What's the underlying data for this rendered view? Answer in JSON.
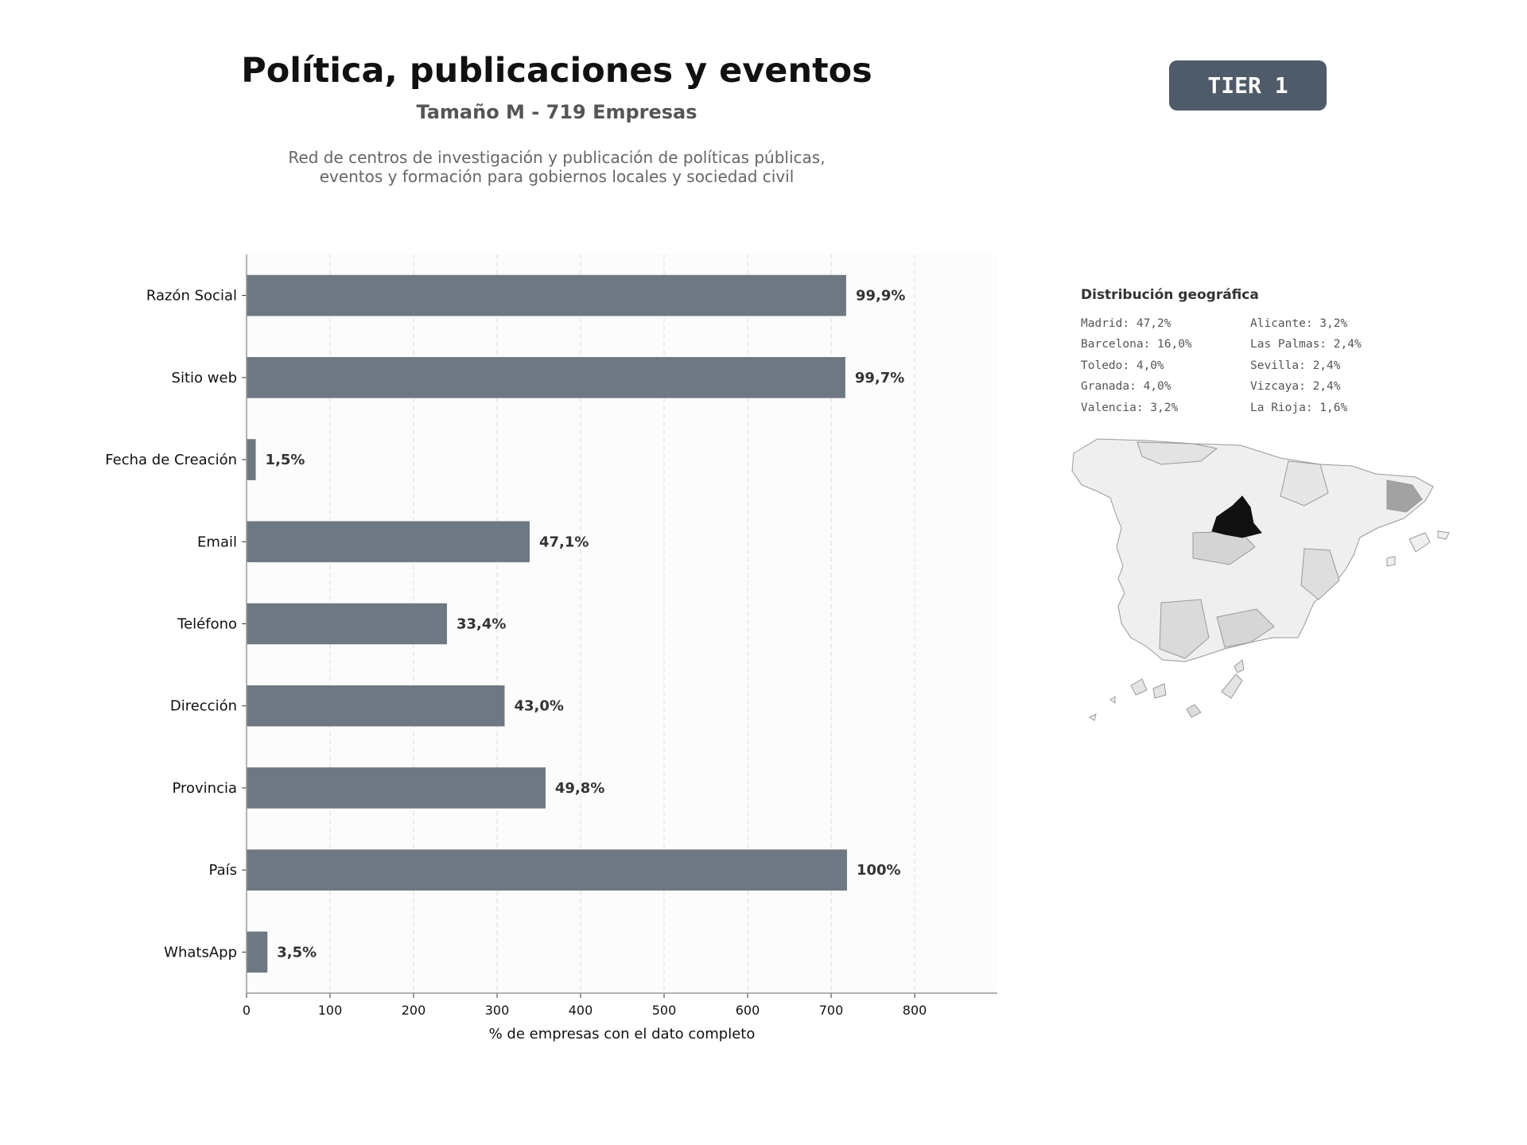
{
  "header": {
    "title": "Política, publicaciones y eventos",
    "subtitle": "Tamaño M - 719 Empresas",
    "description_line1": "Red de centros de investigación y publicación de políticas públicas,",
    "description_line2": "eventos y formación para gobiernos locales y sociedad civil",
    "tier_badge": "TIER 1"
  },
  "colors": {
    "bar": "#6e7882",
    "badge": "#4f5b68",
    "map_highlight": "#111111"
  },
  "chart_data": {
    "type": "bar",
    "orientation": "horizontal",
    "categories": [
      "Razón Social",
      "Sitio web",
      "Fecha de Creación",
      "Email",
      "Teléfono",
      "Dirección",
      "Provincia",
      "País",
      "WhatsApp"
    ],
    "values": [
      718,
      717,
      11,
      339,
      240,
      309,
      358,
      719,
      25
    ],
    "data_labels": [
      "99,9%",
      "99,7%",
      "1,5%",
      "47,1%",
      "33,4%",
      "43,0%",
      "49,8%",
      "100%",
      "3,5%"
    ],
    "xlabel": "% de empresas con el dato completo",
    "xticks": [
      "0",
      "100",
      "200",
      "300",
      "400",
      "500",
      "600",
      "700",
      "800"
    ],
    "xlim": [
      0,
      899
    ],
    "grid": "vertical dashed"
  },
  "geo": {
    "title": "Distribución geográfica",
    "items": [
      "Madrid: 47,2%",
      "Barcelona: 16,0%",
      "Toledo: 4,0%",
      "Granada: 4,0%",
      "Valencia: 3,2%",
      "Alicante: 3,2%",
      "Las Palmas: 2,4%",
      "Sevilla: 2,4%",
      "Vizcaya: 2,4%",
      "La Rioja: 1,6%"
    ]
  }
}
